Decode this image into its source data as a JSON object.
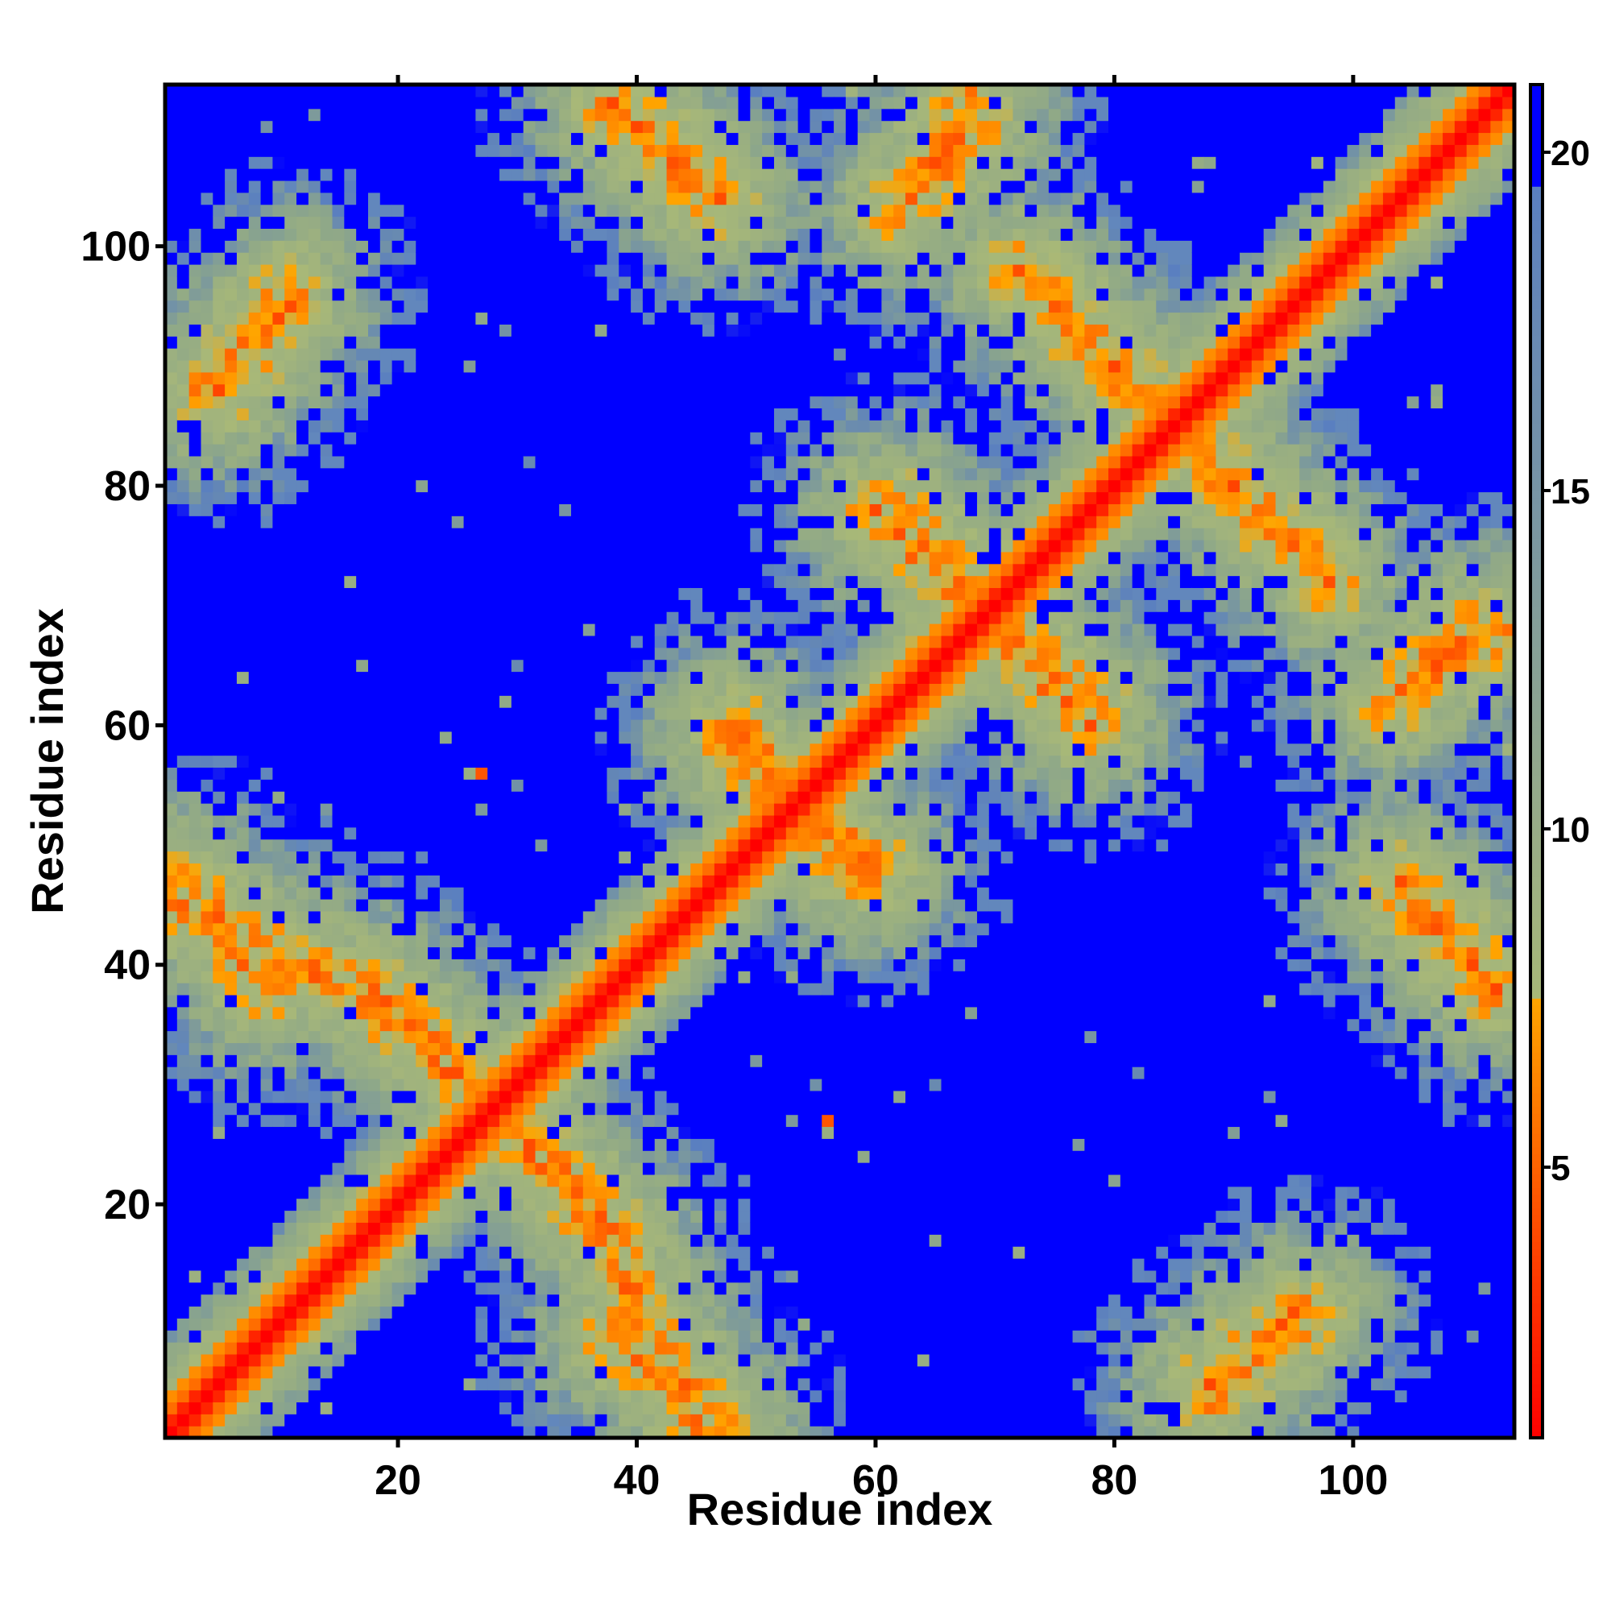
{
  "chart_data": {
    "type": "heatmap",
    "title": "",
    "xlabel": "Residue index",
    "ylabel": "Residue index",
    "xlim": [
      1,
      113
    ],
    "ylim": [
      1,
      113
    ],
    "x_ticks": [
      "20",
      "40",
      "60",
      "80",
      "100"
    ],
    "y_ticks": [
      "20",
      "40",
      "60",
      "80",
      "100"
    ],
    "x_tick_values": [
      20,
      40,
      60,
      80,
      100
    ],
    "y_tick_values": [
      20,
      40,
      60,
      80,
      100
    ],
    "colorbar": {
      "ticks": [
        "5",
        "10",
        "15",
        "20"
      ],
      "tick_values": [
        5,
        10,
        15,
        20
      ],
      "range": [
        1,
        21
      ],
      "stops": [
        {
          "value": 1,
          "color": "#ff0000"
        },
        {
          "value": 4.5,
          "color": "#ff5500"
        },
        {
          "value": 7.5,
          "color": "#ffa500"
        },
        {
          "value": 8.5,
          "color": "#a8b878"
        },
        {
          "value": 14,
          "color": "#8fa888"
        },
        {
          "value": 19,
          "color": "#5a7fc0"
        },
        {
          "value": 21,
          "color": "#0000ff"
        }
      ]
    },
    "n_residues": 113,
    "description_values": "Symmetric residue-residue distance map; diagonal distances ~1, off-diagonal saturated at 21 (blue).",
    "contact_bands": [
      {
        "type": "anti",
        "x": [
          2,
          16
        ],
        "y": [
          45,
          38
        ]
      },
      {
        "type": "anti",
        "x": [
          17,
          38
        ],
        "y": [
          38,
          18
        ]
      },
      {
        "type": "anti",
        "x": [
          38,
          47
        ],
        "y": [
          9,
          2
        ]
      },
      {
        "type": "anti",
        "x": [
          5,
          11
        ],
        "y": [
          88,
          95
        ]
      },
      {
        "type": "anti",
        "x": [
          38,
          47
        ],
        "y": [
          112,
          104
        ]
      },
      {
        "type": "anti",
        "x": [
          62,
          68
        ],
        "y": [
          78,
          70
        ]
      },
      {
        "type": "anti",
        "x": [
          70,
          78
        ],
        "y": [
          68,
          60
        ]
      },
      {
        "type": "anti",
        "x": [
          72,
          86
        ],
        "y": [
          98,
          84
        ]
      },
      {
        "type": "anti",
        "x": [
          84,
          98
        ],
        "y": [
          86,
          72
        ]
      },
      {
        "type": "anti",
        "x": [
          63,
          68
        ],
        "y": [
          104,
          112
        ]
      },
      {
        "type": "anti",
        "x": [
          88,
          96
        ],
        "y": [
          4,
          11
        ]
      },
      {
        "type": "anti",
        "x": [
          103,
          110
        ],
        "y": [
          62,
          68
        ]
      },
      {
        "type": "anti",
        "x": [
          104,
          112
        ],
        "y": [
          46,
          38
        ]
      },
      {
        "type": "anti",
        "x": [
          48,
          58
        ],
        "y": [
          60,
          48
        ]
      }
    ]
  }
}
